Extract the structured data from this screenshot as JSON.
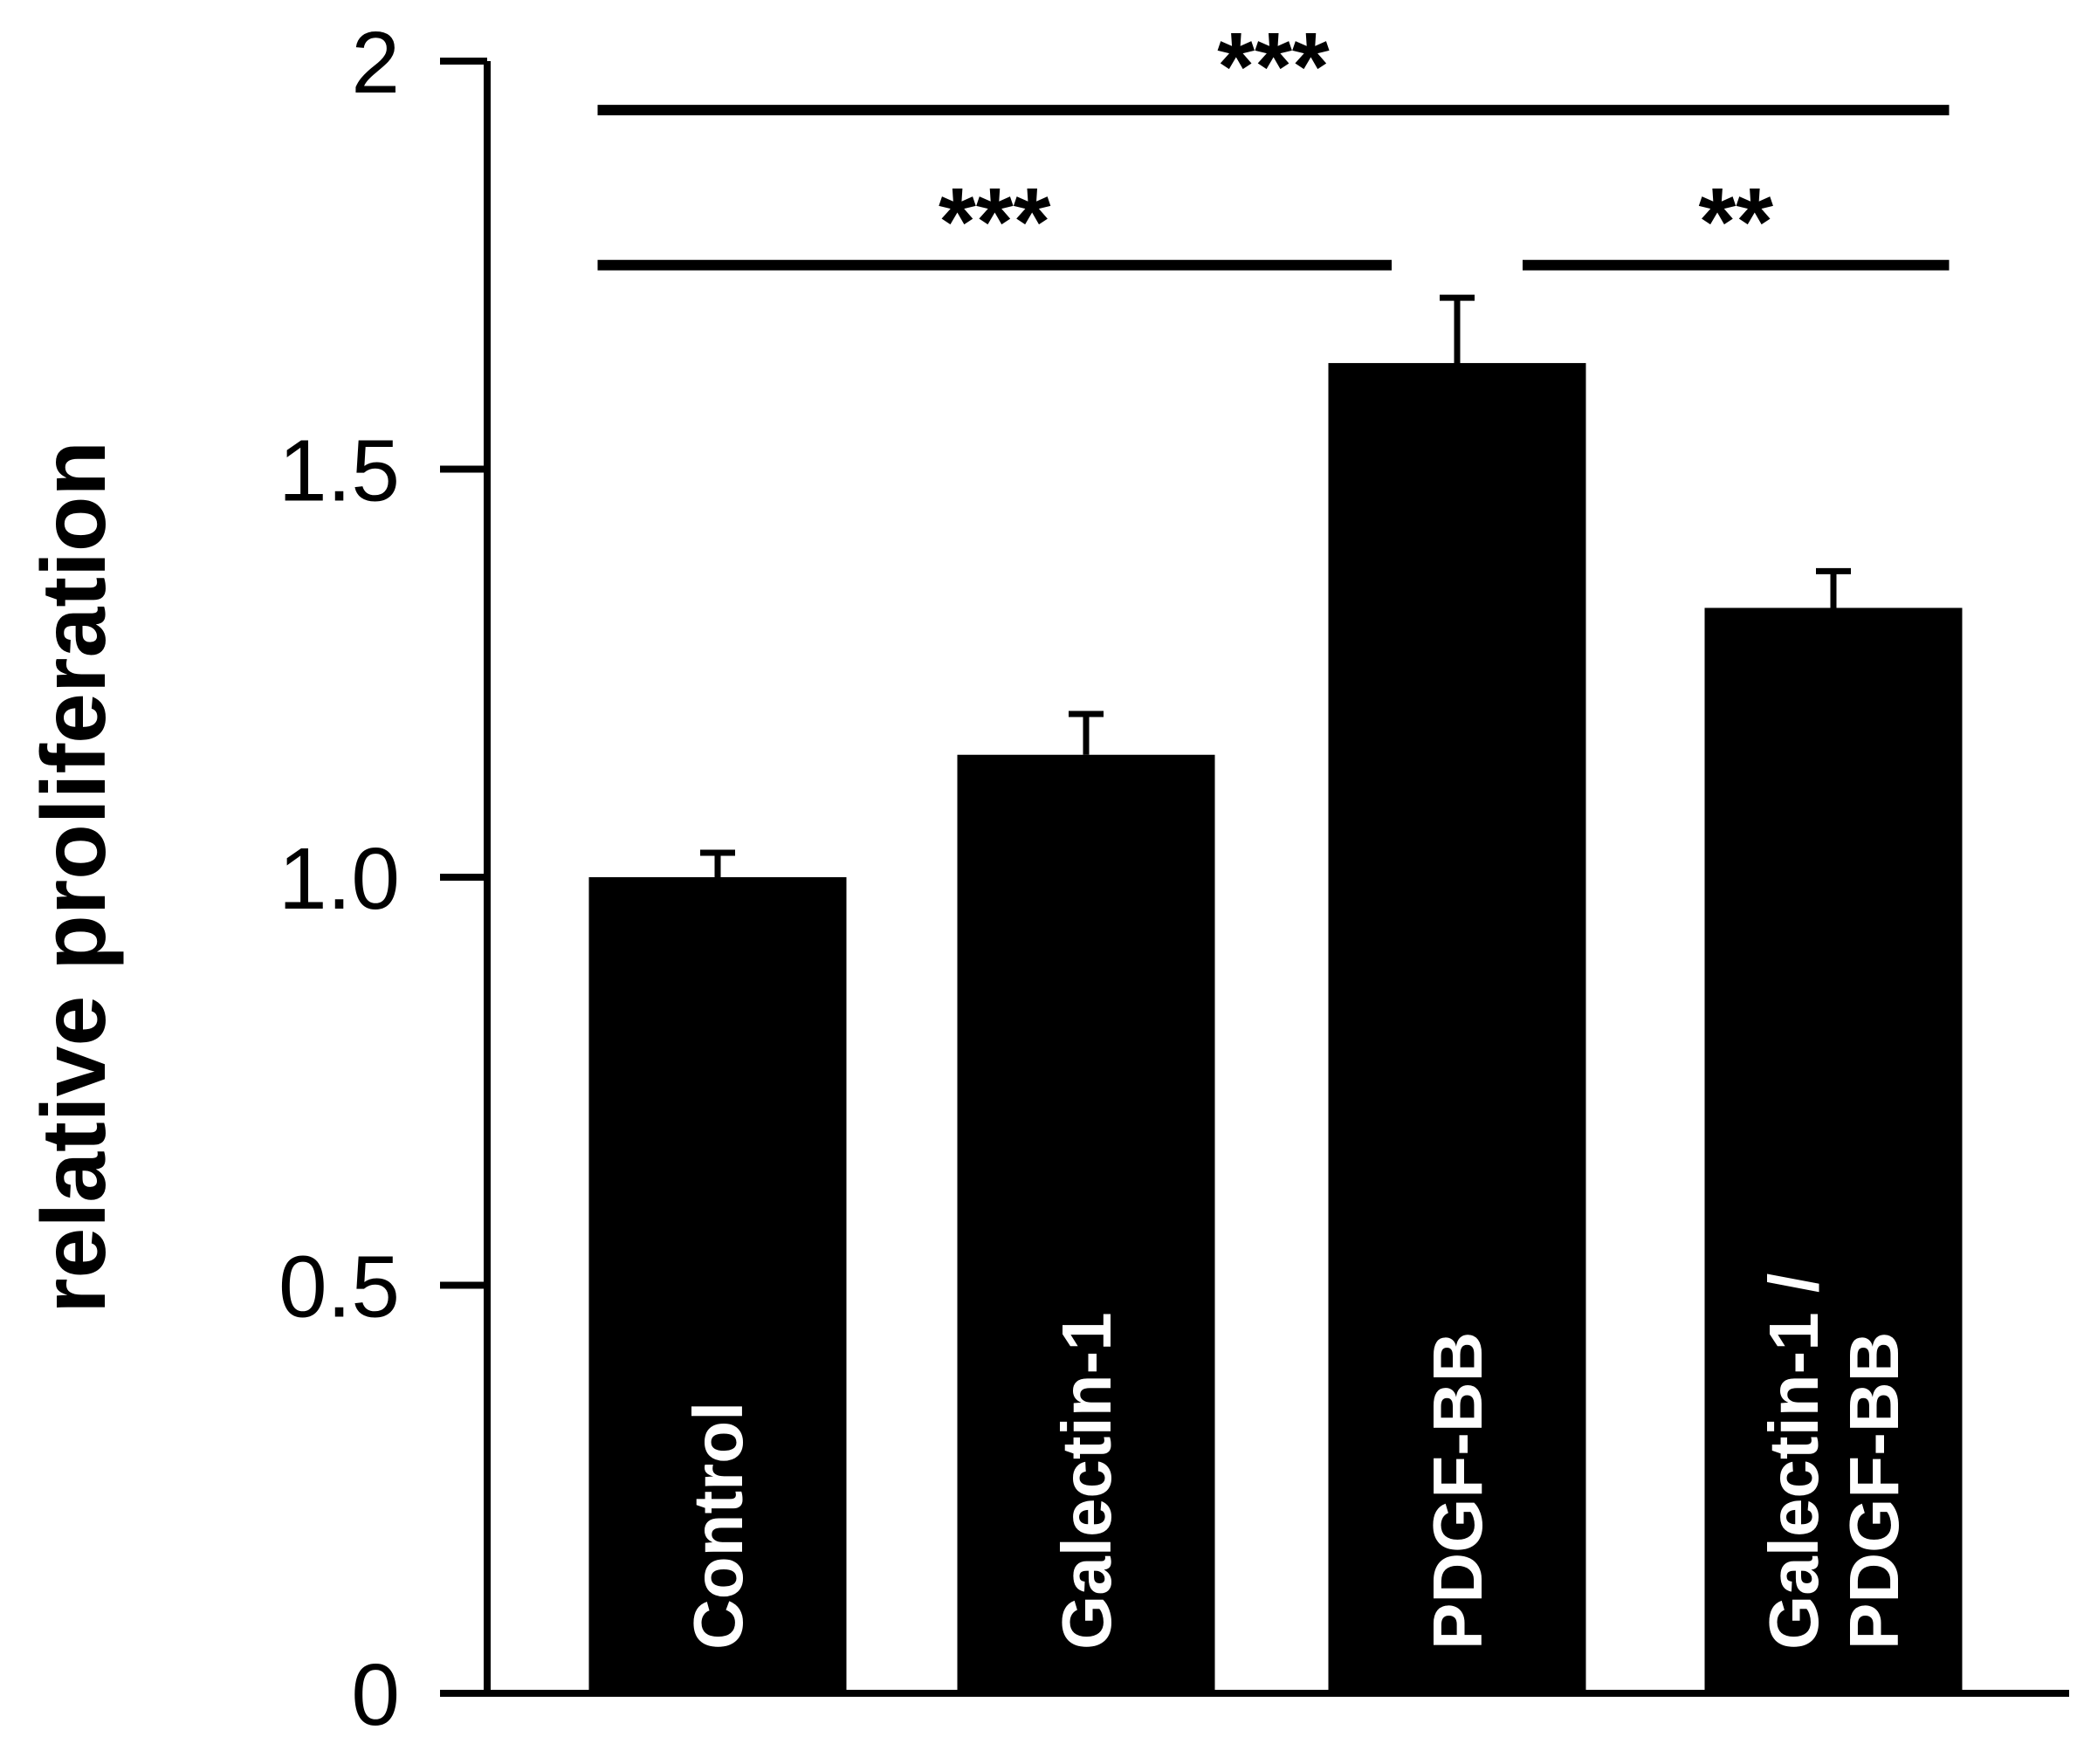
{
  "chart_data": {
    "type": "bar",
    "title": "",
    "xlabel": "",
    "ylabel": "relative proliferation",
    "ylim": [
      0,
      2
    ],
    "yticks": [
      {
        "value": 0,
        "label": "0"
      },
      {
        "value": 0.5,
        "label": "0.5"
      },
      {
        "value": 1.0,
        "label": "1.0"
      },
      {
        "value": 1.5,
        "label": "1.5"
      },
      {
        "value": 2,
        "label": "2"
      }
    ],
    "categories": [
      {
        "lines": [
          "Control"
        ]
      },
      {
        "lines": [
          "Galectin-1"
        ]
      },
      {
        "lines": [
          "PDGF-BB"
        ]
      },
      {
        "lines": [
          "Galectin-1 /",
          "PDGF-BB"
        ]
      }
    ],
    "values": [
      1.0,
      1.15,
      1.63,
      1.33
    ],
    "errors": [
      0.03,
      0.05,
      0.08,
      0.045
    ],
    "bar_color": "#000000",
    "bar_label_color": "#ffffff",
    "significance": [
      {
        "from": 0,
        "to": 2,
        "label": "***",
        "y": 1.75
      },
      {
        "from": 2,
        "to": 3,
        "label": "**",
        "y": 1.75
      },
      {
        "from": 0,
        "to": 3,
        "label": "***",
        "y": 1.94
      }
    ]
  }
}
